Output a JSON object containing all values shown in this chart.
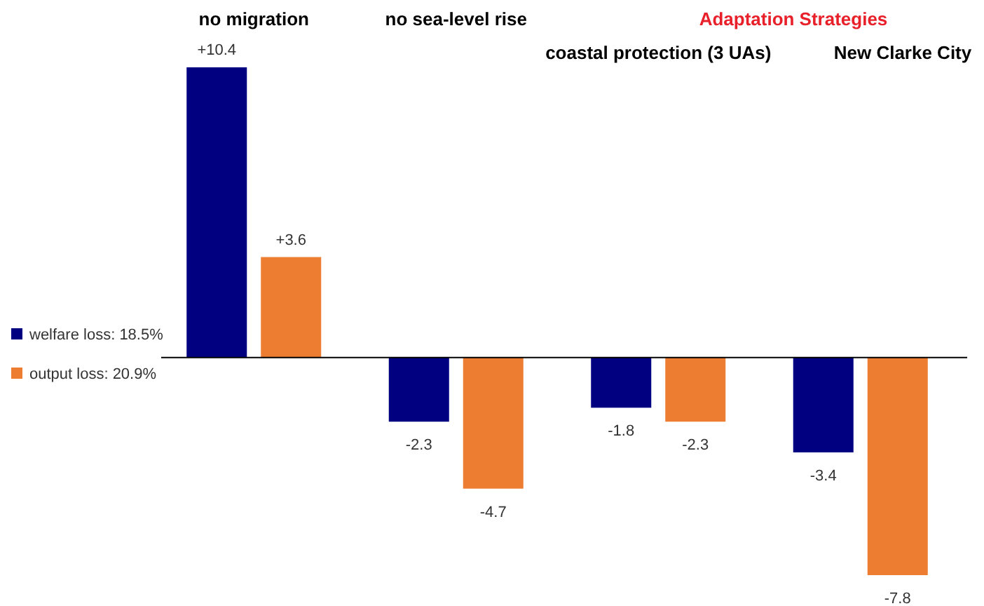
{
  "chart_data": {
    "type": "bar",
    "categories": [
      "no migration",
      "no sea-level rise",
      "coastal protection (3 UAs)",
      "New Clarke City"
    ],
    "series": [
      {
        "name": "welfare loss: 18.5%",
        "color": "#000080",
        "values": [
          10.4,
          -2.3,
          -1.8,
          -3.4
        ],
        "value_labels": [
          "+10.4",
          "-2.3",
          "-1.8",
          "-3.4"
        ]
      },
      {
        "name": "output loss: 20.9%",
        "color": "#ed7d31",
        "values": [
          3.6,
          -4.7,
          -2.3,
          -7.8
        ],
        "value_labels": [
          "+3.6",
          "-4.7",
          "-2.3",
          "-7.8"
        ]
      }
    ],
    "legend": "left",
    "annotations": [
      "Adaptation Strategies"
    ]
  }
}
